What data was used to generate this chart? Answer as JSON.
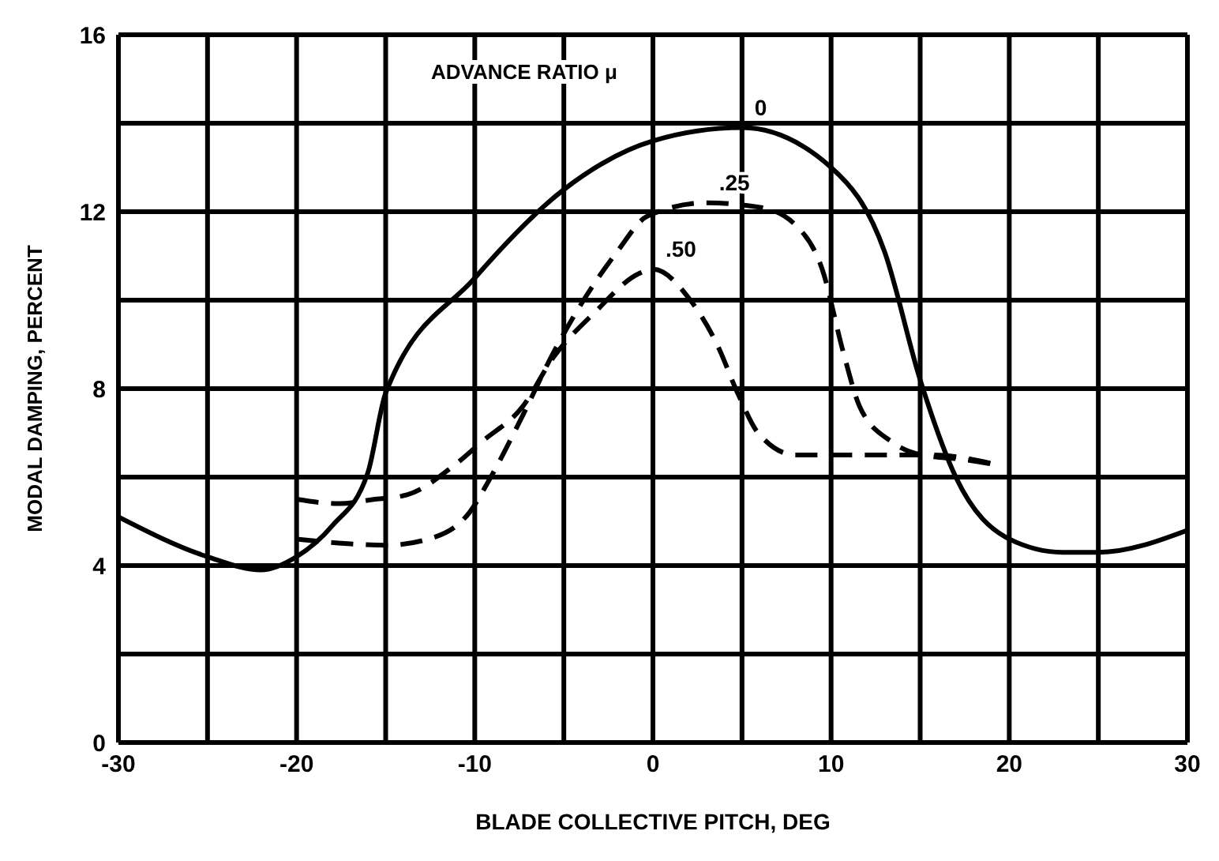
{
  "chart_data": {
    "type": "line",
    "xlabel": "BLADE COLLECTIVE PITCH, DEG",
    "ylabel": "MODAL DAMPING, PERCENT",
    "legend_title": "ADVANCE RATIO μ",
    "xlim": [
      -30,
      30
    ],
    "xticks": [
      -30,
      {
        "value": -25,
        "label": null
      },
      -20,
      {
        "value": -15,
        "label": null
      },
      -10,
      {
        "value": -5,
        "label": null
      },
      0,
      {
        "value": 5,
        "label": null
      },
      10,
      {
        "value": 15,
        "label": null
      },
      20,
      {
        "value": 25,
        "label": null
      },
      30
    ],
    "ylim": [
      0,
      16
    ],
    "yticks": [
      0,
      {
        "value": 2,
        "label": null
      },
      4,
      {
        "value": 6,
        "label": null
      },
      8,
      {
        "value": 10,
        "label": null
      },
      12,
      {
        "value": 14,
        "label": null
      },
      16
    ],
    "grid": true,
    "marker": "none",
    "series": [
      {
        "name": "0",
        "color": "#000000",
        "line_style": "solid",
        "x": [
          -30,
          -25,
          -22,
          -20,
          -18,
          -16,
          -15,
          -10,
          -5,
          0,
          5,
          10,
          13,
          15,
          17,
          20,
          23,
          25,
          30
        ],
        "values": [
          5.1,
          4.2,
          3.9,
          4.2,
          4.9,
          6.1,
          7.9,
          10.5,
          12.5,
          13.6,
          13.9,
          13,
          11.1,
          8.2,
          6,
          4.6,
          4.3,
          4.3,
          4.8
        ]
      },
      {
        "name": ".25",
        "color": "#000000",
        "line_style": "dashed",
        "x": [
          -20,
          -17.3,
          -15,
          -12.6,
          -10.3,
          -9.1,
          -7.3,
          -5.6,
          -2,
          -0.3,
          3,
          6,
          8,
          9.5,
          10.7,
          11.6,
          13.4,
          15.1,
          17.4,
          19.6
        ],
        "values": [
          4.6,
          4.5,
          4.46,
          4.6,
          5.2,
          6,
          7.4,
          8.8,
          11.1,
          11.9,
          12.2,
          12.1,
          11.7,
          10.7,
          8.8,
          7.6,
          6.8,
          6.5,
          6.4,
          6.25
        ]
      },
      {
        "name": ".50",
        "color": "#000000",
        "line_style": "dashed",
        "x": [
          -20,
          -17.6,
          -15.6,
          -13.8,
          -11.2,
          -9.6,
          -7.3,
          -5.6,
          -3.2,
          -0.8,
          0,
          2.1,
          3.6,
          4.8,
          5.9,
          8,
          13.4,
          15.7,
          19.6
        ],
        "values": [
          5.5,
          5.4,
          5.5,
          5.6,
          6.25,
          6.8,
          7.6,
          8.7,
          9.75,
          10.6,
          10.7,
          10,
          9,
          7.86,
          7,
          6.5,
          6.5,
          6.5,
          6.25
        ]
      }
    ]
  }
}
